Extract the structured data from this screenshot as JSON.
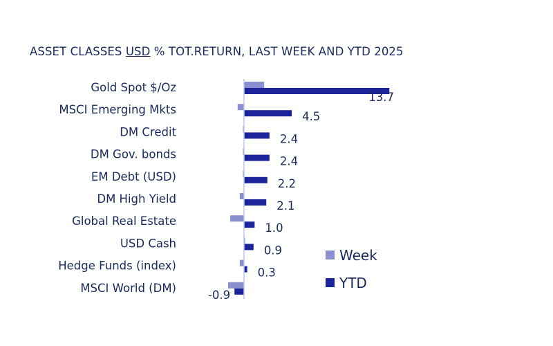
{
  "chart_data": {
    "type": "bar",
    "orientation": "horizontal",
    "title_parts": [
      "ASSET CLASSES ",
      "USD",
      " % TOT.RETURN, LAST WEEK AND YTD 2025"
    ],
    "categories": [
      "Gold Spot   $/Oz",
      "MSCI Emerging Mkts",
      "DM Credit",
      "DM Gov. bonds",
      "EM Debt (USD)",
      "DM High Yield",
      "Global Real Estate",
      "USD Cash",
      "Hedge Funds (index)",
      "MSCI World (DM)"
    ],
    "series": [
      {
        "name": "Week",
        "color": "#8b8fcf",
        "values": [
          1.9,
          -0.6,
          -0.1,
          -0.1,
          -0.1,
          -0.4,
          -1.3,
          0.05,
          -0.4,
          -1.5
        ]
      },
      {
        "name": "YTD",
        "color": "#1c249c",
        "values": [
          13.7,
          4.5,
          2.4,
          2.4,
          2.2,
          2.1,
          1.0,
          0.9,
          0.3,
          -0.9
        ]
      }
    ],
    "data_labels": [
      "13.7",
      "4.5",
      "2.4",
      "2.4",
      "2.2",
      "2.1",
      "1.0",
      "0.9",
      "0.3",
      "-0.9"
    ],
    "legend_position": "bottom-right",
    "grid": false,
    "xlim": [
      -2,
      14
    ]
  }
}
